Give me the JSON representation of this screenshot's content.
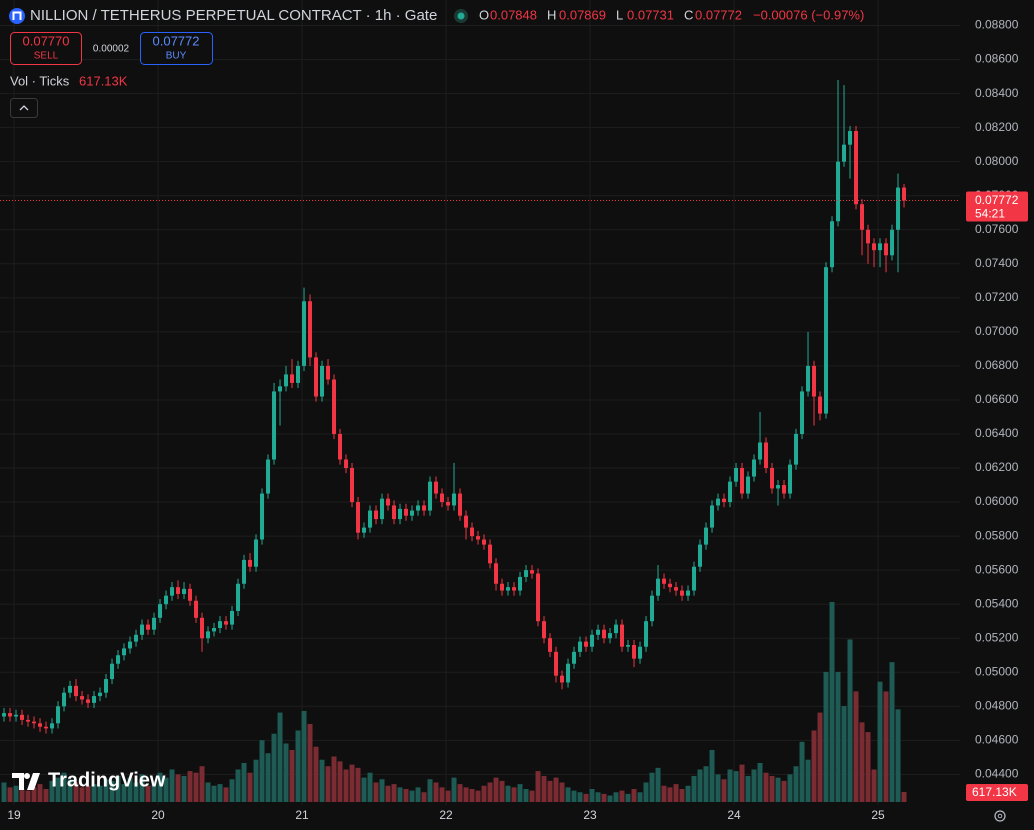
{
  "chart_data": {
    "type": "candlestick",
    "title": "NILLION / TETHERUS PERPETUAL CONTRACT · 1h · Gate",
    "ohlc_labels": [
      "O",
      "H",
      "L",
      "C"
    ],
    "change": "−0.00076 (−0.97%)",
    "trade": {
      "sell_price": "0.07770",
      "sell_label": "SELL",
      "spread": "0.00002",
      "buy_price": "0.07772",
      "buy_label": "BUY"
    },
    "countdown": "54:21",
    "watermark": "TradingView",
    "up_color": "#22ab94",
    "down_color": "#f23645",
    "open": [
      0.0474,
      0.0476,
      0.0474,
      0.0475,
      0.0472,
      0.0471,
      0.047,
      0.0468,
      0.0467,
      0.047,
      0.048,
      0.0488,
      0.0492,
      0.0486,
      0.0484,
      0.0482,
      0.0486,
      0.0488,
      0.0496,
      0.0505,
      0.051,
      0.0514,
      0.0518,
      0.0522,
      0.0528,
      0.0525,
      0.0532,
      0.054,
      0.0545,
      0.055,
      0.0546,
      0.0549,
      0.0542,
      0.0532,
      0.052,
      0.0524,
      0.0526,
      0.053,
      0.0528,
      0.0536,
      0.0552,
      0.0566,
      0.0562,
      0.0578,
      0.0605,
      0.0625,
      0.0665,
      0.0668,
      0.0675,
      0.067,
      0.068,
      0.0718,
      0.0685,
      0.0662,
      0.068,
      0.0672,
      0.064,
      0.0625,
      0.062,
      0.06,
      0.0582,
      0.0585,
      0.0595,
      0.059,
      0.0602,
      0.0598,
      0.059,
      0.0596,
      0.0592,
      0.0595,
      0.0598,
      0.0595,
      0.0612,
      0.0605,
      0.06,
      0.0598,
      0.0605,
      0.0592,
      0.0585,
      0.058,
      0.0578,
      0.0575,
      0.0564,
      0.0552,
      0.0548,
      0.055,
      0.0548,
      0.0556,
      0.056,
      0.0558,
      0.053,
      0.052,
      0.0512,
      0.0498,
      0.0494,
      0.0505,
      0.0512,
      0.0518,
      0.0515,
      0.0522,
      0.0525,
      0.052,
      0.0523,
      0.0528,
      0.0515,
      0.0516,
      0.0508,
      0.0515,
      0.053,
      0.0545,
      0.0555,
      0.0552,
      0.055,
      0.0548,
      0.0545,
      0.0548,
      0.0562,
      0.0575,
      0.0585,
      0.0598,
      0.0602,
      0.06,
      0.0612,
      0.062,
      0.0605,
      0.0615,
      0.0625,
      0.0635,
      0.062,
      0.0608,
      0.061,
      0.0605,
      0.0622,
      0.064,
      0.0665,
      0.068,
      0.0662,
      0.0652,
      0.0738,
      0.0765,
      0.08,
      0.081,
      0.0818,
      0.0775,
      0.076,
      0.0752,
      0.0748,
      0.0752,
      0.0745,
      0.076,
      0.07848
    ],
    "high": [
      0.0479,
      0.0479,
      0.0478,
      0.0478,
      0.0475,
      0.0474,
      0.0473,
      0.0471,
      0.0473,
      0.0483,
      0.0491,
      0.0495,
      0.0496,
      0.0489,
      0.0487,
      0.0489,
      0.0491,
      0.0499,
      0.0508,
      0.0513,
      0.0517,
      0.0521,
      0.0525,
      0.0531,
      0.0531,
      0.0535,
      0.0543,
      0.0548,
      0.0553,
      0.0554,
      0.0553,
      0.0552,
      0.0545,
      0.0535,
      0.0527,
      0.0529,
      0.0533,
      0.0533,
      0.0539,
      0.0555,
      0.0569,
      0.057,
      0.0581,
      0.0608,
      0.0628,
      0.067,
      0.0672,
      0.068,
      0.0684,
      0.0683,
      0.0726,
      0.0722,
      0.0688,
      0.0683,
      0.0684,
      0.0675,
      0.0643,
      0.0628,
      0.0623,
      0.0603,
      0.0588,
      0.0598,
      0.0598,
      0.0605,
      0.0605,
      0.0601,
      0.0599,
      0.0599,
      0.0598,
      0.0601,
      0.0601,
      0.0615,
      0.0615,
      0.0608,
      0.0603,
      0.0623,
      0.0608,
      0.0595,
      0.0588,
      0.0583,
      0.0581,
      0.0578,
      0.0567,
      0.0555,
      0.0553,
      0.0553,
      0.0559,
      0.0563,
      0.0563,
      0.0561,
      0.0533,
      0.0523,
      0.0515,
      0.0501,
      0.0508,
      0.0515,
      0.0521,
      0.0521,
      0.0525,
      0.0528,
      0.0528,
      0.0526,
      0.0531,
      0.0531,
      0.0519,
      0.0519,
      0.0518,
      0.0533,
      0.0548,
      0.0563,
      0.0558,
      0.0555,
      0.0553,
      0.0551,
      0.0551,
      0.0565,
      0.0578,
      0.0588,
      0.0601,
      0.0605,
      0.0605,
      0.0615,
      0.0623,
      0.0623,
      0.0618,
      0.0628,
      0.0653,
      0.0638,
      0.0623,
      0.0613,
      0.0613,
      0.0625,
      0.0643,
      0.0668,
      0.07,
      0.0683,
      0.0665,
      0.0741,
      0.0768,
      0.0848,
      0.0845,
      0.0821,
      0.0821,
      0.0778,
      0.0763,
      0.0755,
      0.0755,
      0.0755,
      0.0763,
      0.0793,
      0.07869
    ],
    "low": [
      0.0471,
      0.0471,
      0.0471,
      0.0469,
      0.0468,
      0.0467,
      0.0465,
      0.0464,
      0.0464,
      0.0467,
      0.0477,
      0.0485,
      0.0483,
      0.0481,
      0.0479,
      0.0479,
      0.0483,
      0.0485,
      0.0493,
      0.0502,
      0.0507,
      0.0511,
      0.0515,
      0.0519,
      0.0522,
      0.0522,
      0.0529,
      0.0537,
      0.0542,
      0.0543,
      0.0543,
      0.0539,
      0.0529,
      0.0512,
      0.0517,
      0.0521,
      0.0523,
      0.0525,
      0.0525,
      0.0533,
      0.0549,
      0.0559,
      0.0559,
      0.0575,
      0.0602,
      0.0622,
      0.0645,
      0.0665,
      0.0667,
      0.0667,
      0.0677,
      0.068,
      0.0659,
      0.0659,
      0.0669,
      0.0637,
      0.0622,
      0.0617,
      0.0597,
      0.0578,
      0.0579,
      0.0582,
      0.0587,
      0.0587,
      0.0595,
      0.0587,
      0.0587,
      0.0589,
      0.0589,
      0.0592,
      0.0592,
      0.0592,
      0.0602,
      0.0597,
      0.0595,
      0.0595,
      0.0589,
      0.0578,
      0.0577,
      0.0575,
      0.0572,
      0.0561,
      0.0548,
      0.0545,
      0.0545,
      0.0545,
      0.0545,
      0.0553,
      0.0555,
      0.0527,
      0.0517,
      0.0509,
      0.0494,
      0.049,
      0.0491,
      0.0502,
      0.0509,
      0.0512,
      0.0512,
      0.0519,
      0.0517,
      0.0517,
      0.052,
      0.0512,
      0.0512,
      0.0503,
      0.0505,
      0.0512,
      0.0527,
      0.0542,
      0.0549,
      0.0547,
      0.0545,
      0.0542,
      0.0542,
      0.0545,
      0.0559,
      0.0572,
      0.0582,
      0.0595,
      0.0597,
      0.0597,
      0.0609,
      0.0602,
      0.0602,
      0.0612,
      0.0622,
      0.0617,
      0.0605,
      0.0598,
      0.0602,
      0.0602,
      0.0619,
      0.0637,
      0.0662,
      0.0645,
      0.0648,
      0.0649,
      0.0735,
      0.0762,
      0.0797,
      0.079,
      0.0772,
      0.0745,
      0.074,
      0.0738,
      0.0738,
      0.0735,
      0.0742,
      0.0735,
      0.07731
    ],
    "close": [
      0.0476,
      0.0474,
      0.0475,
      0.0472,
      0.0471,
      0.047,
      0.0468,
      0.0467,
      0.047,
      0.048,
      0.0488,
      0.0492,
      0.0486,
      0.0484,
      0.0482,
      0.0486,
      0.0488,
      0.0496,
      0.0505,
      0.051,
      0.0514,
      0.0518,
      0.0522,
      0.0528,
      0.0525,
      0.0532,
      0.054,
      0.0545,
      0.055,
      0.0546,
      0.0549,
      0.0542,
      0.0532,
      0.052,
      0.0524,
      0.0526,
      0.053,
      0.0528,
      0.0536,
      0.0552,
      0.0566,
      0.0562,
      0.0578,
      0.0605,
      0.0625,
      0.0665,
      0.0668,
      0.0675,
      0.067,
      0.068,
      0.0718,
      0.0685,
      0.0662,
      0.068,
      0.0672,
      0.064,
      0.0625,
      0.062,
      0.06,
      0.0582,
      0.0585,
      0.0595,
      0.059,
      0.0602,
      0.0598,
      0.059,
      0.0596,
      0.0592,
      0.0595,
      0.0598,
      0.0595,
      0.0612,
      0.0605,
      0.06,
      0.0598,
      0.0605,
      0.0592,
      0.0585,
      0.058,
      0.0578,
      0.0575,
      0.0564,
      0.0552,
      0.0548,
      0.055,
      0.0548,
      0.0556,
      0.056,
      0.0558,
      0.053,
      0.052,
      0.0512,
      0.0498,
      0.0494,
      0.0505,
      0.0512,
      0.0518,
      0.0515,
      0.0522,
      0.0525,
      0.052,
      0.0523,
      0.0528,
      0.0515,
      0.0516,
      0.0508,
      0.0515,
      0.053,
      0.0545,
      0.0555,
      0.0552,
      0.055,
      0.0548,
      0.0545,
      0.0548,
      0.0562,
      0.0575,
      0.0585,
      0.0598,
      0.0602,
      0.06,
      0.0612,
      0.062,
      0.0605,
      0.0615,
      0.0625,
      0.0635,
      0.062,
      0.0608,
      0.061,
      0.0605,
      0.0622,
      0.064,
      0.0665,
      0.068,
      0.0662,
      0.0652,
      0.0738,
      0.0765,
      0.08,
      0.081,
      0.0818,
      0.0775,
      0.076,
      0.0752,
      0.0748,
      0.0752,
      0.0745,
      0.076,
      0.07848,
      0.07772
    ],
    "volume": {
      "name": "Vol · Ticks",
      "up_color": "#1d5b54",
      "down_color": "#7a2c32",
      "last_value_label": "617.13K",
      "values": [
        1200000,
        900000,
        1000000,
        800000,
        700000,
        900000,
        1100000,
        800000,
        1300000,
        1500000,
        1800000,
        1400000,
        1200000,
        900000,
        1000000,
        1100000,
        1000000,
        1400000,
        1300000,
        1600000,
        1100000,
        1500000,
        1200000,
        1700000,
        1000000,
        1300000,
        1800000,
        1500000,
        2000000,
        1700000,
        1600000,
        1900000,
        1800000,
        2200000,
        1200000,
        1000000,
        1100000,
        900000,
        1400000,
        2000000,
        2400000,
        1800000,
        2600000,
        3800000,
        3000000,
        4200000,
        5500000,
        3600000,
        3200000,
        4400000,
        5600000,
        4800000,
        3400000,
        2600000,
        2200000,
        2800000,
        2500000,
        2000000,
        2300000,
        2100000,
        1500000,
        1800000,
        1200000,
        1400000,
        1000000,
        1100000,
        900000,
        800000,
        700000,
        900000,
        600000,
        1400000,
        1200000,
        900000,
        700000,
        1500000,
        1100000,
        900000,
        800000,
        700000,
        1000000,
        1200000,
        1500000,
        1300000,
        1000000,
        900000,
        1100000,
        800000,
        700000,
        1900000,
        1600000,
        1300000,
        1500000,
        1200000,
        900000,
        700000,
        600000,
        500000,
        800000,
        600000,
        500000,
        400000,
        600000,
        700000,
        500000,
        800000,
        600000,
        1200000,
        1800000,
        2100000,
        1000000,
        900000,
        1100000,
        800000,
        1000000,
        1600000,
        2000000,
        2200000,
        3200000,
        1700000,
        1400000,
        2000000,
        1900000,
        2300000,
        1600000,
        2000000,
        2400000,
        1800000,
        1600000,
        1500000,
        1300000,
        1700000,
        2200000,
        3700000,
        2600000,
        4400000,
        5500000,
        8000000,
        12300000,
        8000000,
        5900000,
        10000000,
        6800000,
        4900000,
        4300000,
        2000000,
        7400000,
        6800000,
        8600000,
        5700000,
        617130
      ]
    },
    "xlim": [
      -0.67,
      159.33
    ],
    "xticks": [
      {
        "value": 1.67,
        "label": "19"
      },
      {
        "value": 25.67,
        "label": "20"
      },
      {
        "value": 49.67,
        "label": "21"
      },
      {
        "value": 73.67,
        "label": "22"
      },
      {
        "value": 97.67,
        "label": "23"
      },
      {
        "value": 121.67,
        "label": "24"
      },
      {
        "value": 145.67,
        "label": "25"
      }
    ],
    "ylim": [
      0.0422,
      0.0895
    ],
    "yticks": [
      {
        "value": 0.044,
        "label": "0.04400"
      },
      {
        "value": 0.046,
        "label": "0.04600"
      },
      {
        "value": 0.048,
        "label": "0.04800"
      },
      {
        "value": 0.05,
        "label": "0.05000"
      },
      {
        "value": 0.052,
        "label": "0.05200"
      },
      {
        "value": 0.054,
        "label": "0.05400"
      },
      {
        "value": 0.056,
        "label": "0.05600"
      },
      {
        "value": 0.058,
        "label": "0.05800"
      },
      {
        "value": 0.06,
        "label": "0.06000"
      },
      {
        "value": 0.062,
        "label": "0.06200"
      },
      {
        "value": 0.064,
        "label": "0.06400"
      },
      {
        "value": 0.066,
        "label": "0.06600"
      },
      {
        "value": 0.068,
        "label": "0.06800"
      },
      {
        "value": 0.07,
        "label": "0.07000"
      },
      {
        "value": 0.072,
        "label": "0.07200"
      },
      {
        "value": 0.074,
        "label": "0.07400"
      },
      {
        "value": 0.076,
        "label": "0.07600"
      },
      {
        "value": 0.078,
        "label": "0.07800"
      },
      {
        "value": 0.08,
        "label": "0.08000"
      },
      {
        "value": 0.082,
        "label": "0.08200"
      },
      {
        "value": 0.084,
        "label": "0.08400"
      },
      {
        "value": 0.086,
        "label": "0.08600"
      },
      {
        "value": 0.088,
        "label": "0.08800"
      }
    ],
    "grid": true
  }
}
